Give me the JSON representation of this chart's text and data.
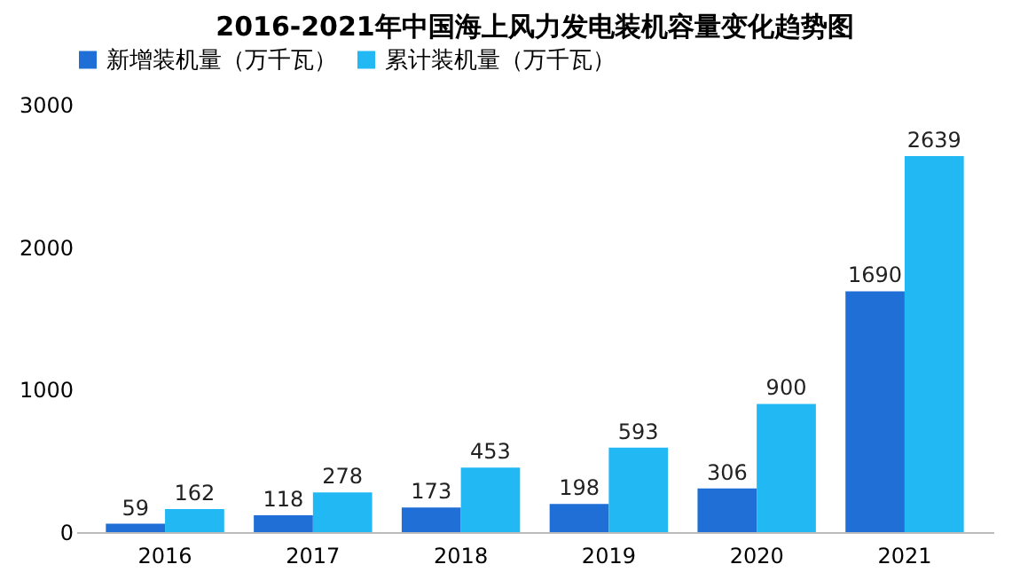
{
  "chart_data": {
    "type": "bar",
    "title": "2016-2021年中国海上风力发电装机容量变化趋势图",
    "categories": [
      "2016",
      "2017",
      "2018",
      "2019",
      "2020",
      "2021"
    ],
    "series": [
      {
        "name": "新增装机量（万千瓦）",
        "color": "#1f6fd6",
        "values": [
          59,
          118,
          173,
          198,
          306,
          1690
        ]
      },
      {
        "name": "累计装机量（万千瓦）",
        "color": "#22b8f4",
        "values": [
          162,
          278,
          453,
          593,
          900,
          2639
        ]
      }
    ],
    "ylim": [
      0,
      3000
    ],
    "yticks": [
      0,
      1000,
      2000,
      3000
    ],
    "grid": false,
    "legend": "top",
    "data_labels": true
  }
}
